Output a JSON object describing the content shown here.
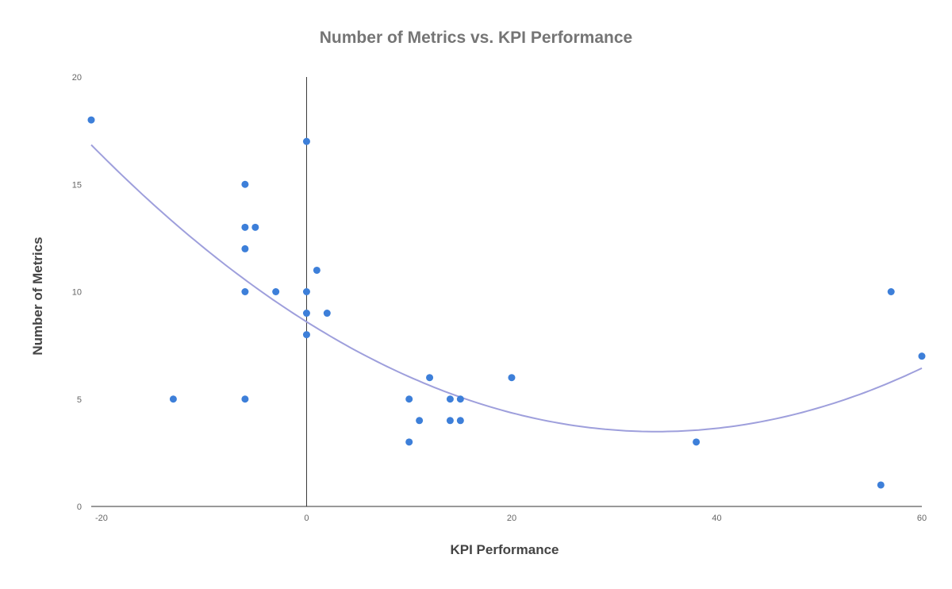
{
  "chart_data": {
    "type": "scatter",
    "title": "Number of Metrics vs. KPI Performance",
    "xlabel": "KPI Performance",
    "ylabel": "Number of Metrics",
    "xlim": [
      -21,
      60
    ],
    "ylim": [
      0,
      20
    ],
    "x_ticks": [
      -20,
      0,
      20,
      40,
      60
    ],
    "y_ticks": [
      0,
      5,
      10,
      15,
      20
    ],
    "grid": false,
    "legend": "none",
    "colors": {
      "points": "#3d7fd9",
      "trendline": "#9e9fdc",
      "zero_line": "#333333",
      "axis": "#333333"
    },
    "trendline": {
      "type": "polynomial",
      "degree": 2,
      "coefficients": [
        8.6,
        -0.3,
        0.0044
      ]
    },
    "points": [
      {
        "x": -21,
        "y": 18
      },
      {
        "x": -13,
        "y": 5
      },
      {
        "x": -6,
        "y": 15
      },
      {
        "x": -6,
        "y": 13
      },
      {
        "x": -5,
        "y": 13
      },
      {
        "x": -6,
        "y": 12
      },
      {
        "x": -6,
        "y": 10
      },
      {
        "x": -6,
        "y": 5
      },
      {
        "x": -3,
        "y": 10
      },
      {
        "x": 0,
        "y": 17
      },
      {
        "x": 0,
        "y": 10
      },
      {
        "x": 0,
        "y": 9
      },
      {
        "x": 0,
        "y": 8
      },
      {
        "x": 1,
        "y": 11
      },
      {
        "x": 2,
        "y": 9
      },
      {
        "x": 10,
        "y": 5
      },
      {
        "x": 10,
        "y": 3
      },
      {
        "x": 11,
        "y": 4
      },
      {
        "x": 12,
        "y": 6
      },
      {
        "x": 14,
        "y": 5
      },
      {
        "x": 14,
        "y": 4
      },
      {
        "x": 15,
        "y": 5
      },
      {
        "x": 15,
        "y": 4
      },
      {
        "x": 20,
        "y": 6
      },
      {
        "x": 38,
        "y": 3
      },
      {
        "x": 56,
        "y": 1
      },
      {
        "x": 57,
        "y": 10
      },
      {
        "x": 60,
        "y": 7
      }
    ]
  }
}
